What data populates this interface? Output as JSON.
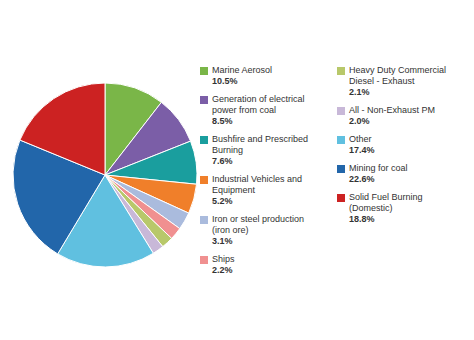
{
  "chart_data": {
    "type": "pie",
    "categories": [
      "Marine Aerosol",
      "Generation of electrical\npower from coal",
      "Bushfire and Prescribed\nBurning",
      "Industrial Vehicles and\nEquipment",
      "Iron or steel production\n(iron ore)",
      "Ships",
      "Heavy Duty Commercial\nDiesel - Exhaust",
      "All - Non-Exhaust PM",
      "Other",
      "Mining for coal",
      "Solid Fuel Burning\n(Domestic)"
    ],
    "values": [
      10.5,
      8.5,
      7.6,
      5.2,
      3.1,
      2.2,
      2.1,
      2.0,
      17.4,
      22.6,
      18.8
    ],
    "value_labels": [
      "10.5%",
      "8.5%",
      "7.6%",
      "5.2%",
      "3.1%",
      "2.2%",
      "2.1%",
      "2.0%",
      "17.4%",
      "22.6%",
      "18.8%"
    ],
    "colors": [
      "#7ab648",
      "#7b5ea7",
      "#1a9e9e",
      "#f07f2a",
      "#aabbdd",
      "#f09090",
      "#b8c86a",
      "#c8b8d8",
      "#60c0e0",
      "#2266aa",
      "#cc2222"
    ]
  }
}
